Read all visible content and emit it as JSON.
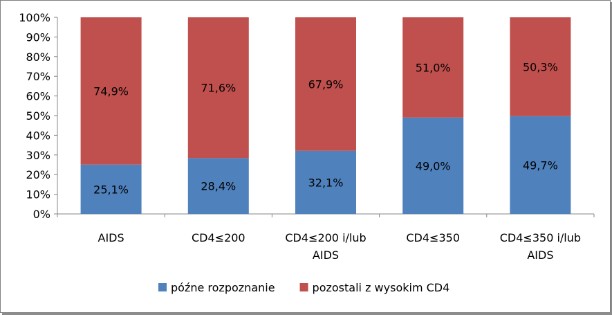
{
  "chart_data": {
    "type": "bar",
    "stacked": true,
    "percent_stacked": true,
    "categories": [
      [
        "AIDS"
      ],
      [
        "CD4≤200"
      ],
      [
        "CD4≤200 i/lub",
        "AIDS"
      ],
      [
        "CD4≤350"
      ],
      [
        "CD4≤350 i/lub",
        "AIDS"
      ]
    ],
    "series": [
      {
        "name": "późne rozpoznanie",
        "color": "#4f81bd",
        "values": [
          25.1,
          28.4,
          32.1,
          49.0,
          49.7
        ],
        "labels": [
          "25,1%",
          "28,4%",
          "32,1%",
          "49,0%",
          "49,7%"
        ]
      },
      {
        "name": "pozostali z wysokim CD4",
        "color": "#c0504d",
        "values": [
          74.9,
          71.6,
          67.9,
          51.0,
          50.3
        ],
        "labels": [
          "74,9%",
          "71,6%",
          "67,9%",
          "51,0%",
          "50,3%"
        ]
      }
    ],
    "yticks": [
      "0%",
      "10%",
      "20%",
      "30%",
      "40%",
      "50%",
      "60%",
      "70%",
      "80%",
      "90%",
      "100%"
    ],
    "ylim": [
      0,
      100
    ],
    "grid": false,
    "legend": "bottom"
  }
}
